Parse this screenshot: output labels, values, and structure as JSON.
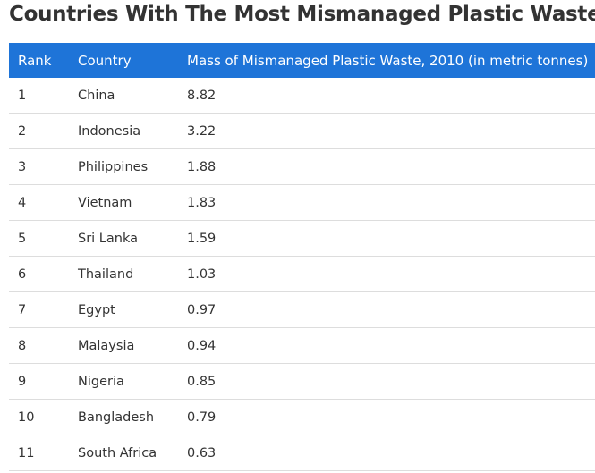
{
  "title": "Countries With The Most Mismanaged Plastic Wastes",
  "table": {
    "headers": {
      "rank": "Rank",
      "country": "Country",
      "mass": "Mass of Mismanaged Plastic Waste, 2010 (in metric tonnes)"
    },
    "rows": [
      {
        "rank": "1",
        "country": "China",
        "mass": "8.82"
      },
      {
        "rank": "2",
        "country": "Indonesia",
        "mass": "3.22"
      },
      {
        "rank": "3",
        "country": "Philippines",
        "mass": "1.88"
      },
      {
        "rank": "4",
        "country": "Vietnam",
        "mass": "1.83"
      },
      {
        "rank": "5",
        "country": "Sri Lanka",
        "mass": "1.59"
      },
      {
        "rank": "6",
        "country": "Thailand",
        "mass": "1.03"
      },
      {
        "rank": "7",
        "country": "Egypt",
        "mass": "0.97"
      },
      {
        "rank": "8",
        "country": "Malaysia",
        "mass": "0.94"
      },
      {
        "rank": "9",
        "country": "Nigeria",
        "mass": "0.85"
      },
      {
        "rank": "10",
        "country": "Bangladesh",
        "mass": "0.79"
      },
      {
        "rank": "11",
        "country": "South Africa",
        "mass": "0.63"
      }
    ]
  },
  "colors": {
    "header_bg": "#1e74d8",
    "header_text": "#ffffff",
    "row_divider": "#dddddd"
  }
}
